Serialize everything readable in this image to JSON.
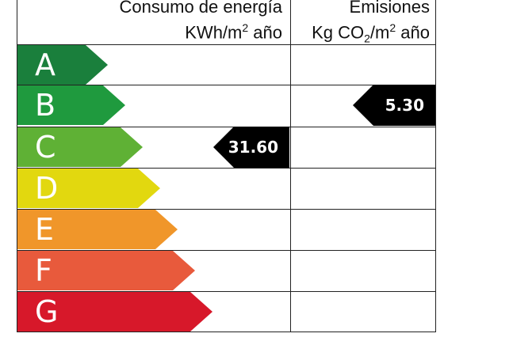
{
  "header": {
    "energy": {
      "line1": "Consumo de energía",
      "line2_a": "KWh/m",
      "line2_sup": "2",
      "line2_b": " año"
    },
    "emissions": {
      "line1": "Emisiones",
      "line2_a": "Kg CO",
      "line2_sub": "2",
      "line2_b": "/m",
      "line2_sup": "2",
      "line2_c": " año"
    }
  },
  "ratings": [
    {
      "letter": "A",
      "color": "#1a7f3c"
    },
    {
      "letter": "B",
      "color": "#1f9a3e"
    },
    {
      "letter": "C",
      "color": "#5fb135"
    },
    {
      "letter": "D",
      "color": "#e2d80f"
    },
    {
      "letter": "E",
      "color": "#f0962a"
    },
    {
      "letter": "F",
      "color": "#e85a3c"
    },
    {
      "letter": "G",
      "color": "#d7182a"
    }
  ],
  "energy_value": {
    "value": "31.60",
    "rating": "C"
  },
  "emissions_value": {
    "value": "5.30",
    "rating": "B"
  },
  "tag_color": "#000000"
}
